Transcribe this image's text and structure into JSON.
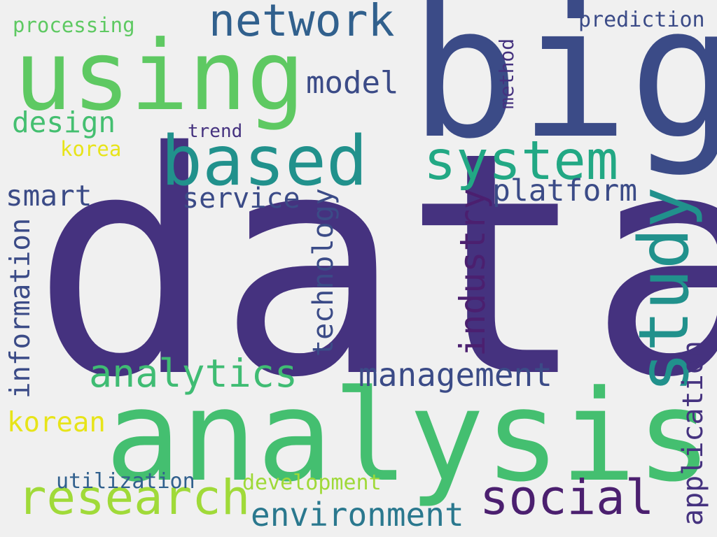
{
  "words": {
    "data": "data",
    "big": "big",
    "analysis": "analysis",
    "using": "using",
    "study": "study",
    "based": "based",
    "system": "system",
    "network": "network",
    "research": "research",
    "social": "social",
    "analytics": "analytics",
    "management": "management",
    "environment": "environment",
    "industry": "industry",
    "technology": "technology",
    "information": "information",
    "application": "application",
    "platform": "platform",
    "service": "service",
    "smart": "smart",
    "model": "model",
    "design": "design",
    "korean": "korean",
    "development": "development",
    "utilization": "utilization",
    "processing": "processing",
    "prediction": "prediction",
    "method": "method",
    "trend": "trend",
    "korea": "korea"
  },
  "colors": {
    "background": "#f0f0f0",
    "dark_purple": "#45327f",
    "indigo": "#3b4b87",
    "blue": "#31608d",
    "teal": "#21918c",
    "green_teal": "#22a884",
    "green": "#44bf70",
    "light_green": "#7ad151",
    "lime": "#9fd938",
    "yellow": "#e7e419",
    "deep_purple": "#4b1f6f"
  }
}
